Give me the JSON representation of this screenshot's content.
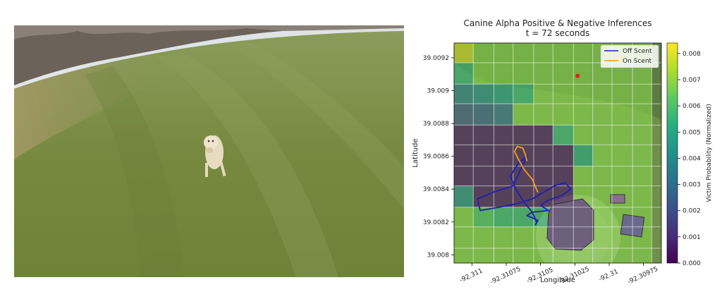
{
  "chart_data": {
    "type": "heatmap",
    "title": "Canine Alpha Positive & Negative Inferences",
    "subtitle": "t = 72 seconds",
    "xlabel": "Longitude",
    "ylabel": "Latitude",
    "colorbar_label": "Victim Probability (Normalized)",
    "colormap": "viridis",
    "x_ticks": [
      -92.311,
      -92.31075,
      -92.3105,
      -92.31025,
      -92.31,
      -92.30975
    ],
    "x_tick_labels": [
      "-92.311",
      "-92.31075",
      "-92.3105",
      "-92.31025",
      "-92.31",
      "-92.30975"
    ],
    "y_ticks": [
      39.0092,
      39.009,
      39.0088,
      39.0086,
      39.0084,
      39.0082,
      39.008
    ],
    "y_tick_labels": [
      "39.0092",
      "39.009",
      "39.0088",
      "39.0086",
      "39.0084",
      "39.0082",
      "39.008"
    ],
    "xlim": [
      -92.31113,
      -92.30962
    ],
    "ylim": [
      39.00795,
      39.00929
    ],
    "colorbar_ticks": [
      0.0,
      0.001,
      0.002,
      0.003,
      0.004,
      0.005,
      0.006,
      0.007,
      0.008
    ],
    "colorbar_tick_labels": [
      "0.000",
      "0.001",
      "0.002",
      "0.003",
      "0.004",
      "0.005",
      "0.006",
      "0.007",
      "0.008"
    ],
    "colorbar_range": [
      0.0,
      0.0084
    ],
    "grid": {
      "x_edges": [
        -92.31113,
        -92.31099,
        -92.31084,
        -92.3107,
        -92.31055,
        -92.31041,
        -92.31026,
        -92.31012,
        -92.30998,
        -92.30983,
        -92.30969
      ],
      "y_edges": [
        39.00929,
        39.00917,
        39.00904,
        39.00892,
        39.00879,
        39.00867,
        39.00854,
        39.00842,
        39.00829,
        39.00817,
        39.00804,
        39.00795
      ],
      "values": [
        [
          0.0079,
          0.0068,
          0.0068,
          0.0068,
          0.0068,
          0.0068,
          0.0068,
          0.0068,
          0.0068,
          0.0068
        ],
        [
          0.0055,
          0.0068,
          0.0068,
          0.0068,
          0.0068,
          0.0068,
          0.0068,
          0.0068,
          0.0068,
          0.0068
        ],
        [
          0.0035,
          0.004,
          0.0045,
          0.0055,
          0.0068,
          0.0068,
          0.0068,
          0.0068,
          0.0068,
          0.0068
        ],
        [
          0.0022,
          0.0025,
          0.003,
          0.0068,
          0.0068,
          0.0068,
          0.0068,
          0.0068,
          0.0068,
          0.0068
        ],
        [
          0.0004,
          0.0004,
          0.0004,
          0.0004,
          0.0004,
          0.0055,
          0.0068,
          0.0068,
          0.0068,
          0.0068
        ],
        [
          0.0004,
          0.0004,
          0.0004,
          0.0004,
          0.0004,
          0.0004,
          0.005,
          0.0068,
          0.0068,
          0.0068
        ],
        [
          0.0004,
          0.0004,
          0.0004,
          0.0004,
          0.0004,
          0.0004,
          0.0068,
          0.0068,
          0.0068,
          0.0068
        ],
        [
          0.004,
          0.0004,
          0.0004,
          0.0004,
          0.0004,
          0.0004,
          0.0068,
          0.0068,
          0.0068,
          0.0068
        ],
        [
          0.0068,
          0.006,
          0.0055,
          0.0055,
          0.0055,
          0.006,
          0.0068,
          0.0068,
          0.0068,
          0.0068
        ],
        [
          0.0068,
          0.0068,
          0.0068,
          0.0068,
          0.0068,
          0.0068,
          0.0068,
          0.0068,
          0.0068,
          0.0068
        ],
        [
          0.0068,
          0.0068,
          0.0068,
          0.0068,
          0.0068,
          0.0068,
          0.0068,
          0.0068,
          0.0068,
          0.0068
        ]
      ]
    },
    "series": [
      {
        "name": "Off Scent",
        "color": "#1f1fb4",
        "x": [
          -92.31053,
          -92.31056,
          -92.31062,
          -92.31068,
          -92.31072,
          -92.31066,
          -92.3106,
          -92.3107,
          -92.31085,
          -92.31096,
          -92.31094,
          -92.3108,
          -92.31068,
          -92.31056,
          -92.31048,
          -92.3104,
          -92.31032,
          -92.31028,
          -92.31035,
          -92.31045,
          -92.3105,
          -92.31044,
          -92.31056,
          -92.3106,
          -92.31052,
          -92.31054
        ],
        "y": [
          39.0082,
          39.00826,
          39.00832,
          39.0084,
          39.00848,
          39.00856,
          39.0086,
          39.00842,
          39.00838,
          39.00834,
          39.00827,
          39.00829,
          39.00831,
          39.00834,
          39.00838,
          39.00842,
          39.00844,
          39.0084,
          39.00836,
          39.00833,
          39.0083,
          39.00827,
          39.00826,
          39.00824,
          39.00821,
          39.00818
        ]
      },
      {
        "name": "On Scent",
        "color": "#f4a11a",
        "x": [
          -92.31052,
          -92.31056,
          -92.31062,
          -92.31066,
          -92.31069,
          -92.31067,
          -92.31063,
          -92.31061,
          -92.3106
        ],
        "y": [
          39.00838,
          39.00846,
          39.00852,
          39.00858,
          39.00863,
          39.00866,
          39.00865,
          39.00861,
          39.00857
        ]
      }
    ],
    "marker": {
      "x": -92.31023,
      "y": 39.00909,
      "color": "#e82020"
    },
    "legend_placement": "top-right"
  }
}
